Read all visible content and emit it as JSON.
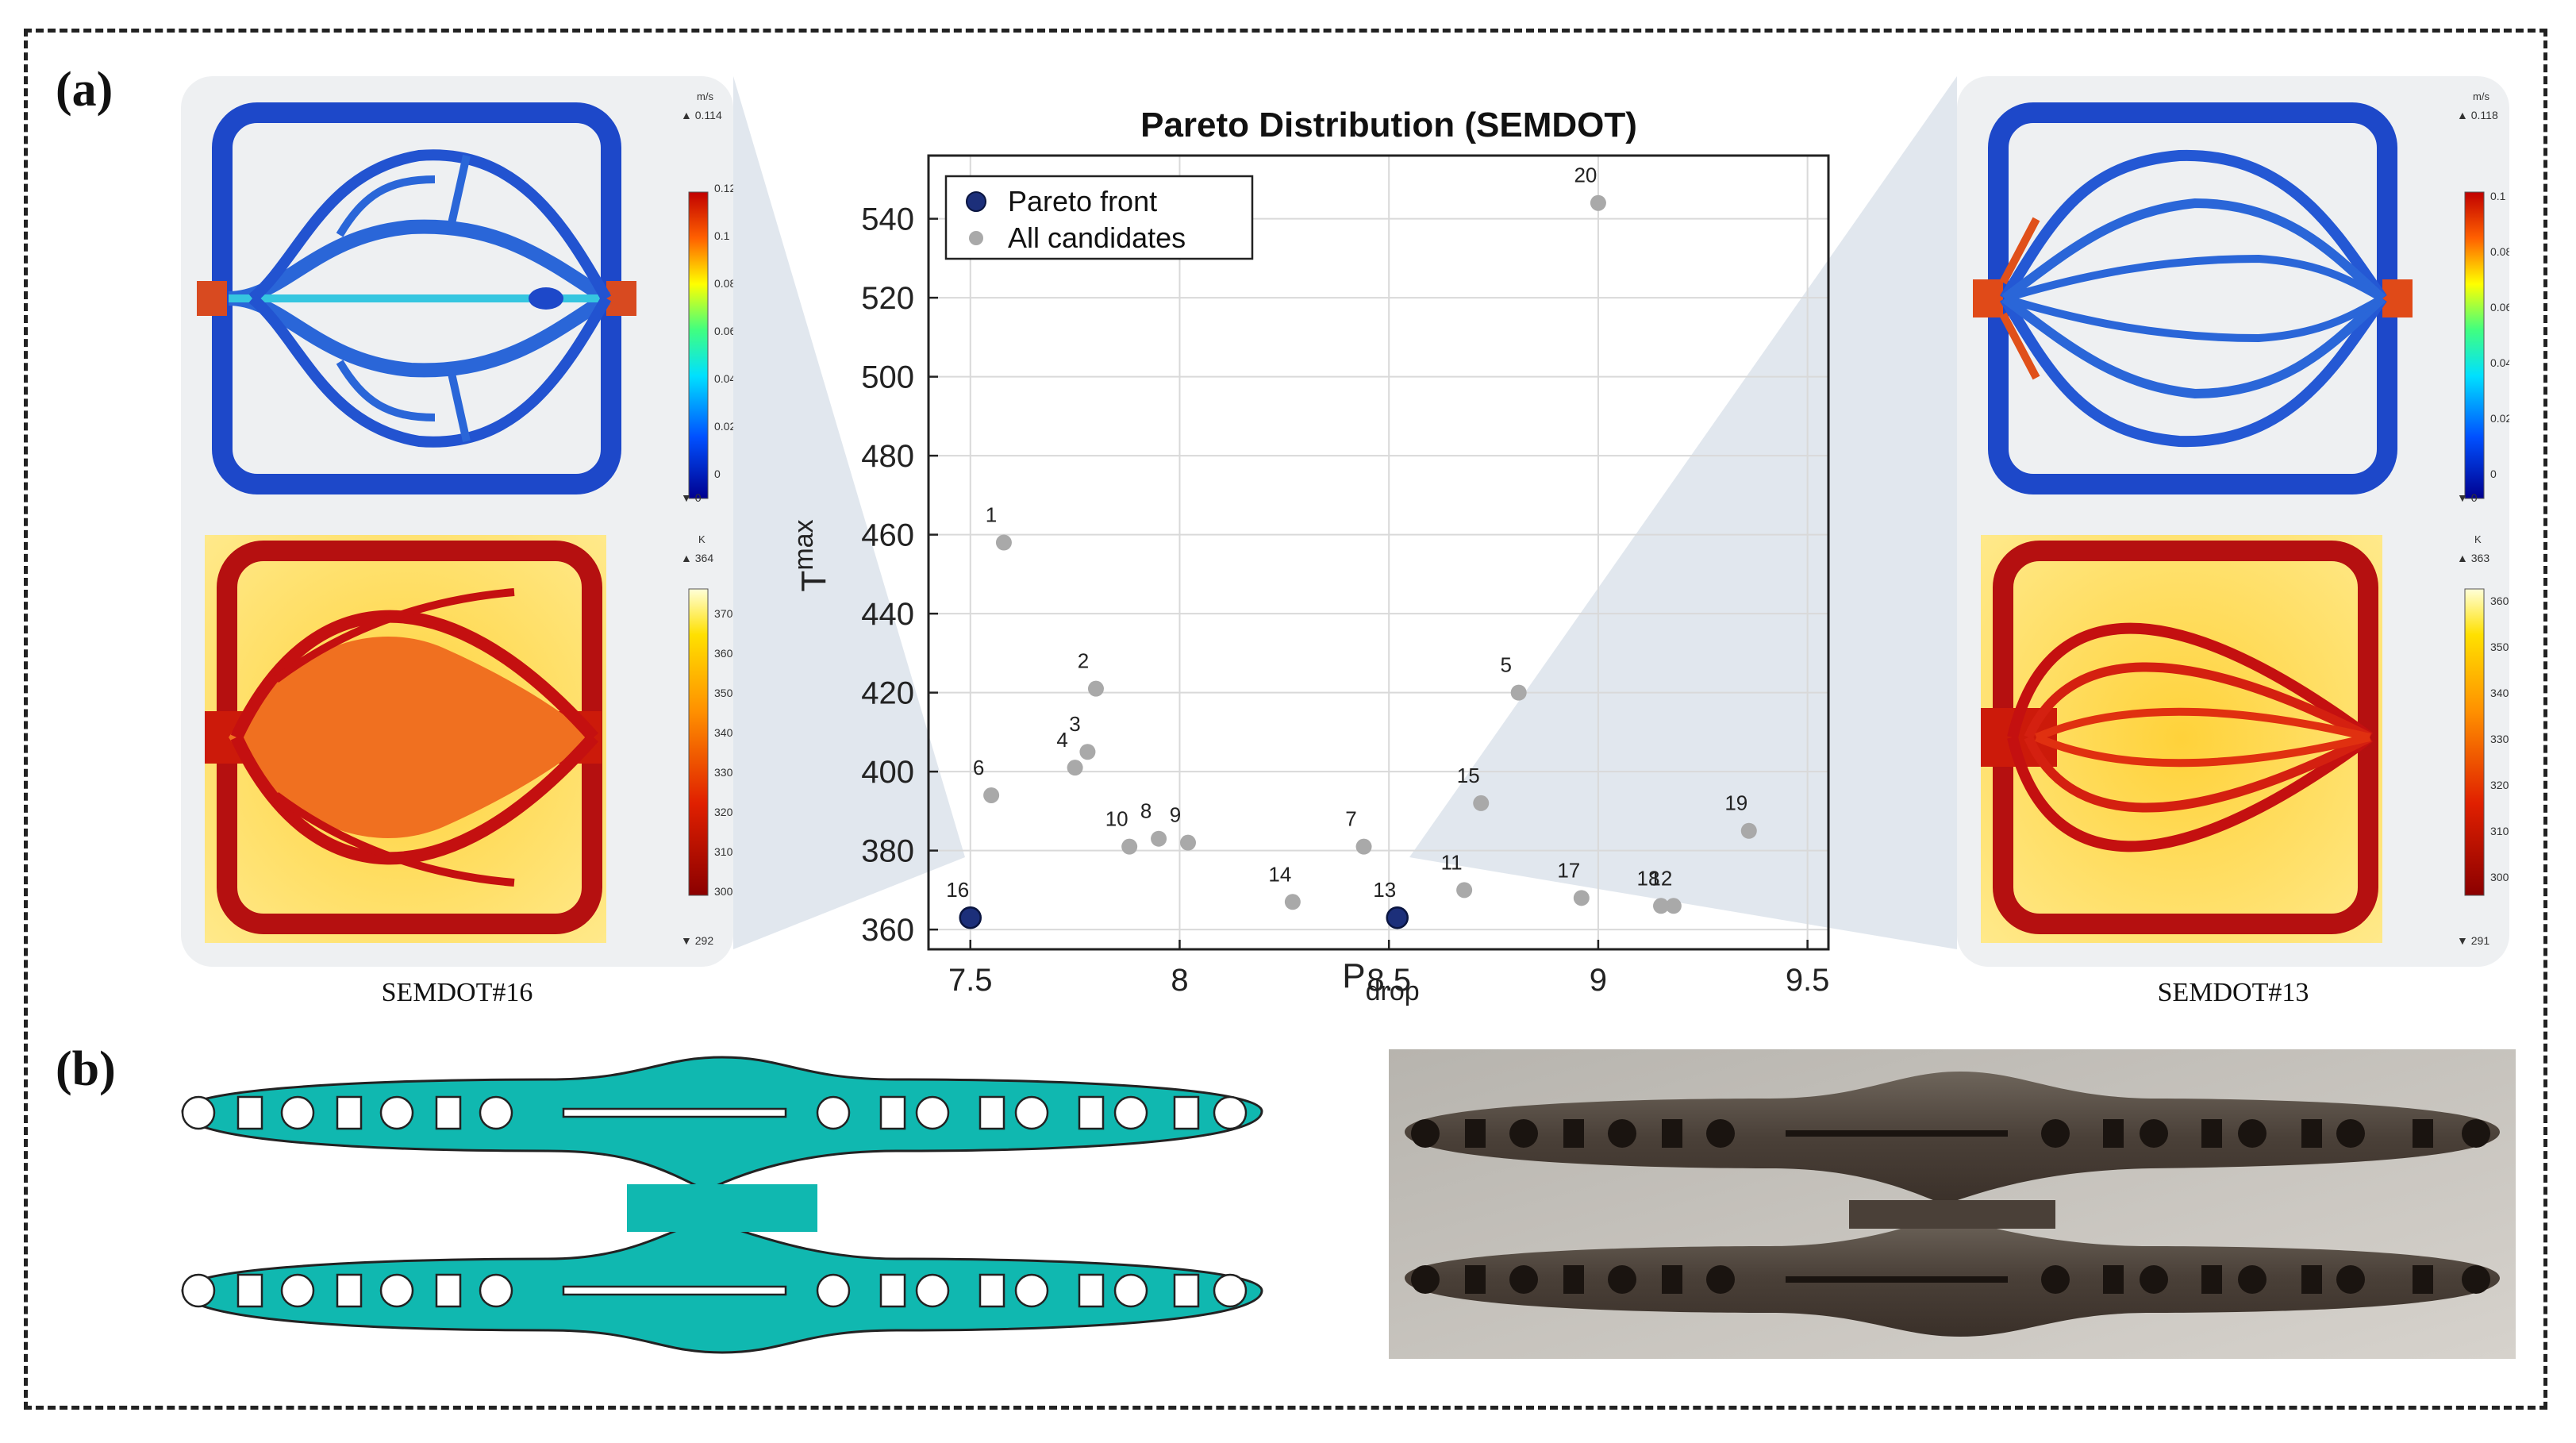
{
  "figure": {
    "label_a": "(a)",
    "label_b": "(b)",
    "left_caption": "SEMDOT#16",
    "right_caption": "SEMDOT#13"
  },
  "left_sim": {
    "velocity": {
      "unit": "m/s",
      "max": "▲ 0.114",
      "min": "▼ 0",
      "ticks": [
        "0.12",
        "0.1",
        "0.08",
        "0.06",
        "0.04",
        "0.02",
        "0"
      ]
    },
    "temperature": {
      "unit": "K",
      "max": "▲ 364",
      "min": "▼ 292",
      "ticks": [
        "370",
        "360",
        "350",
        "340",
        "330",
        "320",
        "310",
        "300"
      ]
    }
  },
  "right_sim": {
    "velocity": {
      "unit": "m/s",
      "max": "▲ 0.118",
      "min": "▼ 0",
      "ticks": [
        "0.1",
        "0.08",
        "0.06",
        "0.04",
        "0.02",
        "0"
      ]
    },
    "temperature": {
      "unit": "K",
      "max": "▲ 363",
      "min": "▼ 291",
      "ticks": [
        "360",
        "350",
        "340",
        "330",
        "320",
        "310",
        "300"
      ]
    }
  },
  "chart_data": {
    "type": "scatter",
    "title": "Pareto Distribution (SEMDOT)",
    "xlabel_main": "P",
    "xlabel_sub": "drop",
    "ylabel_main": "T",
    "ylabel_sub": "max",
    "xlim": [
      7.4,
      9.55
    ],
    "ylim": [
      355,
      556
    ],
    "xticks": [
      7.5,
      8,
      8.5,
      9,
      9.5
    ],
    "xtick_labels": [
      "7.5",
      "8",
      "8.5",
      "9",
      "9.5"
    ],
    "yticks": [
      360,
      380,
      400,
      420,
      440,
      460,
      480,
      500,
      520,
      540
    ],
    "grid": true,
    "legend_position": "top-left",
    "legend": [
      "Pareto front",
      "All candidates"
    ],
    "colors": {
      "pareto": "#1c2f7a",
      "candidates": "#a9a9a9"
    },
    "points": [
      {
        "label": "1",
        "x": 7.58,
        "y": 458,
        "pareto": false
      },
      {
        "label": "2",
        "x": 7.8,
        "y": 421,
        "pareto": false
      },
      {
        "label": "3",
        "x": 7.78,
        "y": 405,
        "pareto": false
      },
      {
        "label": "4",
        "x": 7.75,
        "y": 401,
        "pareto": false
      },
      {
        "label": "5",
        "x": 8.81,
        "y": 420,
        "pareto": false
      },
      {
        "label": "6",
        "x": 7.55,
        "y": 394,
        "pareto": false
      },
      {
        "label": "7",
        "x": 8.44,
        "y": 381,
        "pareto": false
      },
      {
        "label": "8",
        "x": 7.95,
        "y": 383,
        "pareto": false
      },
      {
        "label": "9",
        "x": 8.02,
        "y": 382,
        "pareto": false
      },
      {
        "label": "10",
        "x": 7.88,
        "y": 381,
        "pareto": false
      },
      {
        "label": "11",
        "x": 8.68,
        "y": 370,
        "pareto": false
      },
      {
        "label": "12",
        "x": 9.18,
        "y": 366,
        "pareto": false
      },
      {
        "label": "13",
        "x": 8.52,
        "y": 363,
        "pareto": true
      },
      {
        "label": "14",
        "x": 8.27,
        "y": 367,
        "pareto": false
      },
      {
        "label": "15",
        "x": 8.72,
        "y": 392,
        "pareto": false
      },
      {
        "label": "16",
        "x": 7.5,
        "y": 363,
        "pareto": true
      },
      {
        "label": "17",
        "x": 8.96,
        "y": 368,
        "pareto": false
      },
      {
        "label": "18",
        "x": 9.15,
        "y": 366,
        "pareto": false
      },
      {
        "label": "19",
        "x": 9.36,
        "y": 385,
        "pareto": false
      },
      {
        "label": "20",
        "x": 9.0,
        "y": 544,
        "pareto": false
      }
    ]
  }
}
